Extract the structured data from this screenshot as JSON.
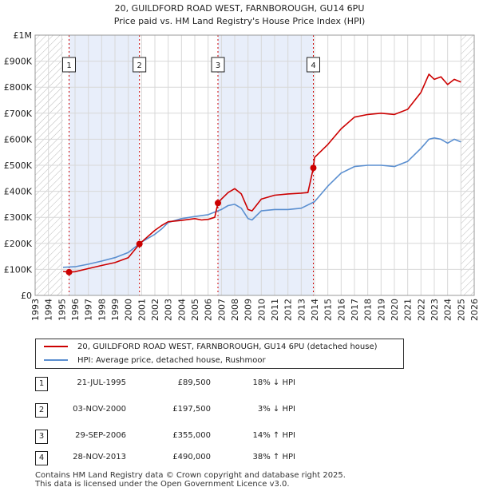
{
  "chart_data": {
    "type": "line",
    "title": "20, GUILDFORD ROAD WEST, FARNBOROUGH, GU14 6PU",
    "subtitle": "Price paid vs. HM Land Registry's House Price Index (HPI)",
    "xlabel": "",
    "ylabel": "",
    "xlim": [
      1993,
      2026
    ],
    "ylim": [
      0,
      1000000
    ],
    "x_ticks": [
      "1993",
      "1994",
      "1995",
      "1996",
      "1997",
      "1998",
      "1999",
      "2000",
      "2001",
      "2002",
      "2003",
      "2004",
      "2005",
      "2006",
      "2007",
      "2008",
      "2009",
      "2010",
      "2011",
      "2012",
      "2013",
      "2014",
      "2015",
      "2016",
      "2017",
      "2018",
      "2019",
      "2020",
      "2021",
      "2022",
      "2023",
      "2024",
      "2025",
      "2026"
    ],
    "y_ticks": [
      {
        "value": 0,
        "label": "£0"
      },
      {
        "value": 100000,
        "label": "£100K"
      },
      {
        "value": 200000,
        "label": "£200K"
      },
      {
        "value": 300000,
        "label": "£300K"
      },
      {
        "value": 400000,
        "label": "£400K"
      },
      {
        "value": 500000,
        "label": "£500K"
      },
      {
        "value": 600000,
        "label": "£600K"
      },
      {
        "value": 700000,
        "label": "£700K"
      },
      {
        "value": 800000,
        "label": "£800K"
      },
      {
        "value": 900000,
        "label": "£900K"
      },
      {
        "value": 1000000,
        "label": "£1M"
      }
    ],
    "hatched_ranges": [
      [
        1993,
        1995.1
      ],
      [
        2025.0,
        2026
      ]
    ],
    "shaded_periods": [
      [
        1995.55,
        2000.84
      ],
      [
        2006.74,
        2013.91
      ]
    ],
    "series": [
      {
        "name": "20, GUILDFORD ROAD WEST, FARNBOROUGH, GU14 6PU (detached house)",
        "color": "#cc0000",
        "x": [
          1995.1,
          1995.55,
          1996,
          1997,
          1998,
          1999,
          2000,
          2000.84,
          2001,
          2002,
          2002.5,
          2003,
          2004,
          2005,
          2005.5,
          2006,
          2006.5,
          2006.74,
          2007,
          2007.5,
          2008,
          2008.5,
          2009,
          2009.3,
          2010,
          2011,
          2012,
          2013,
          2013.5,
          2013.91,
          2014,
          2015,
          2016,
          2017,
          2018,
          2019,
          2020,
          2021,
          2022,
          2022.6,
          2023,
          2023.5,
          2024,
          2024.5,
          2025
        ],
        "y": [
          92000,
          89500,
          91000,
          103000,
          115000,
          126000,
          145000,
          197500,
          205000,
          250000,
          268000,
          283000,
          288000,
          295000,
          290000,
          292000,
          300000,
          355000,
          370000,
          395000,
          410000,
          390000,
          330000,
          325000,
          370000,
          385000,
          390000,
          393000,
          395000,
          490000,
          530000,
          580000,
          640000,
          685000,
          695000,
          700000,
          695000,
          715000,
          780000,
          850000,
          830000,
          840000,
          810000,
          830000,
          820000
        ]
      },
      {
        "name": "HPI: Average price, detached house, Rushmoor",
        "color": "#5b8fd0",
        "x": [
          1995.1,
          1996,
          1997,
          1998,
          1999,
          2000,
          2001,
          2002,
          2002.5,
          2003,
          2004,
          2005,
          2006,
          2007,
          2007.5,
          2008,
          2008.5,
          2009,
          2009.3,
          2010,
          2011,
          2012,
          2013,
          2014,
          2015,
          2016,
          2017,
          2018,
          2019,
          2020,
          2021,
          2022,
          2022.6,
          2023,
          2023.5,
          2024,
          2024.5,
          2025
        ],
        "y": [
          108000,
          110000,
          120000,
          132000,
          145000,
          165000,
          205000,
          235000,
          255000,
          280000,
          295000,
          303000,
          310000,
          330000,
          345000,
          350000,
          335000,
          295000,
          290000,
          325000,
          330000,
          330000,
          335000,
          360000,
          420000,
          470000,
          495000,
          500000,
          500000,
          495000,
          515000,
          565000,
          600000,
          605000,
          600000,
          585000,
          600000,
          590000
        ]
      }
    ],
    "sales": [
      {
        "n": "1",
        "x": 1995.55,
        "y": 89500
      },
      {
        "n": "2",
        "x": 2000.84,
        "y": 197500
      },
      {
        "n": "3",
        "x": 2006.74,
        "y": 355000
      },
      {
        "n": "4",
        "x": 2013.91,
        "y": 490000
      }
    ]
  },
  "legend": {
    "property_label": "20, GUILDFORD ROAD WEST, FARNBOROUGH, GU14 6PU (detached house)",
    "hpi_label": "HPI: Average price, detached house, Rushmoor"
  },
  "sales_table": [
    {
      "n": "1",
      "date": "21-JUL-1995",
      "price": "£89,500",
      "hpi": "18% ↓ HPI"
    },
    {
      "n": "2",
      "date": "03-NOV-2000",
      "price": "£197,500",
      "hpi": "3% ↓ HPI"
    },
    {
      "n": "3",
      "date": "29-SEP-2006",
      "price": "£355,000",
      "hpi": "14% ↑ HPI"
    },
    {
      "n": "4",
      "date": "28-NOV-2013",
      "price": "£490,000",
      "hpi": "38% ↑ HPI"
    }
  ],
  "footer": {
    "line1": "Contains HM Land Registry data © Crown copyright and database right 2025.",
    "line2": "This data is licensed under the Open Government Licence v3.0."
  },
  "colors": {
    "property": "#cc0000",
    "hpi": "#5b8fd0",
    "shade": "#e8eefa",
    "grid": "#d8d8d8"
  }
}
